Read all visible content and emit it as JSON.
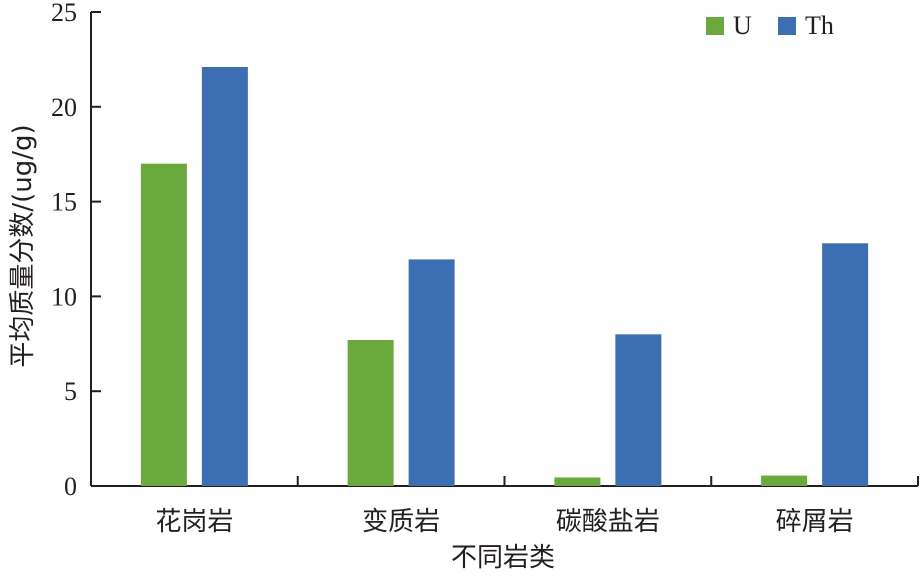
{
  "chart_data": {
    "type": "bar",
    "categories": [
      "花岗岩",
      "变质岩",
      "碳酸盐岩",
      "碎屑岩"
    ],
    "series": [
      {
        "name": "U",
        "values": [
          17.0,
          7.7,
          0.45,
          0.55
        ],
        "color": "#6aaa3c"
      },
      {
        "name": "Th",
        "values": [
          22.1,
          11.95,
          8.0,
          12.8
        ],
        "color": "#3c6eb4"
      }
    ],
    "title": "",
    "xlabel": "不同岩类",
    "ylabel": "平均质量分数/(ug/g)",
    "ylim": [
      0,
      25
    ],
    "yticks": [
      0,
      5,
      10,
      15,
      20,
      25
    ],
    "grid": false,
    "legend_position": "top-right"
  }
}
